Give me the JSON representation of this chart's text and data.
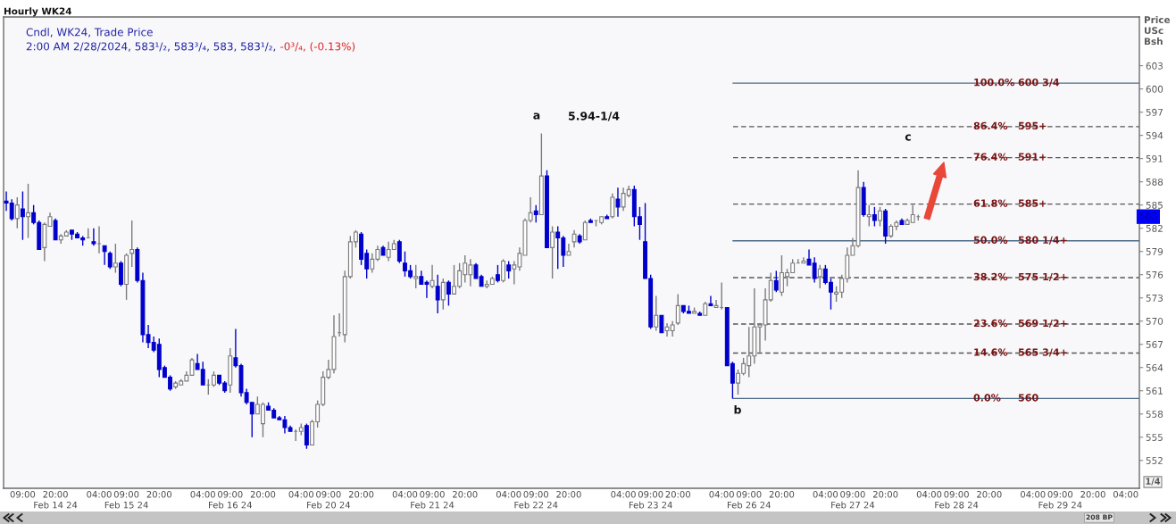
{
  "chart_data": {
    "type": "candlestick",
    "title": "Hourly WK24",
    "subtitle": "Cndl, WK24, Trade Price",
    "ylabel": "Price\nUSc\nBsh",
    "categories": [
      null,
      null,
      null,
      "09:00",
      null,
      null,
      null,
      null,
      null,
      "20:00\nFeb 14 24",
      null,
      null,
      null,
      null,
      null,
      null,
      null,
      "04:00",
      null,
      null,
      null,
      null,
      "09:00\nFeb 15 24",
      null,
      null,
      null,
      null,
      null,
      "20:00",
      null,
      null,
      null,
      null,
      null,
      null,
      null,
      "04:00",
      null,
      null,
      null,
      null,
      "09:00\nFeb 16 24",
      null,
      null,
      null,
      null,
      null,
      "20:00",
      null,
      null,
      null,
      null,
      null,
      null,
      "04:00",
      null,
      null,
      null,
      null,
      "09:00\nFeb 20 24",
      null,
      null,
      null,
      null,
      null,
      "20:00",
      null,
      null,
      null,
      null,
      null,
      null,
      null,
      "04:00",
      null,
      null,
      null,
      null,
      "09:00\nFeb 21 24",
      null,
      null,
      null,
      null,
      null,
      "20:00",
      null,
      null,
      null,
      null,
      null,
      null,
      null,
      "04:00",
      null,
      null,
      null,
      null,
      "09:00\nFeb 22 24",
      null,
      null,
      null,
      null,
      null,
      "20:00",
      null,
      null,
      null,
      null,
      null,
      null,
      null,
      null,
      null,
      "04:00",
      null,
      null,
      null,
      null,
      "09:00\nFeb 23 24",
      null,
      null,
      null,
      null,
      "20:00",
      null,
      null,
      null,
      null,
      null,
      null,
      null,
      "04:00",
      null,
      null,
      null,
      null,
      "09:00\nFeb 26 24",
      null,
      null,
      null,
      null,
      null,
      "20:00",
      null,
      null,
      null,
      null,
      null,
      null,
      null,
      "04:00",
      null,
      null,
      null,
      null,
      "09:00\nFeb 27 24",
      null,
      null,
      null,
      null,
      null,
      "20:00",
      null,
      null,
      null,
      null,
      null,
      null,
      null,
      "04:00",
      null,
      null,
      null,
      null,
      "09:00\nFeb 28 24",
      null,
      null,
      null,
      null,
      null,
      "20:00",
      null,
      null,
      null,
      null,
      null,
      null,
      null,
      "04:00",
      null,
      null,
      null,
      null,
      "09:00\nFeb 29 24",
      null,
      null,
      null,
      null,
      null,
      "20:00",
      null,
      null,
      null,
      null,
      null,
      "04:00",
      null,
      null
    ],
    "ohlc": [
      [
        585.5,
        586.75,
        584.25,
        585.25
      ],
      [
        585.25,
        585.75,
        583.0,
        583.25
      ],
      [
        583.25,
        586.0,
        582.0,
        585.0
      ],
      [
        584.5,
        586.75,
        580.5,
        583.5
      ],
      [
        583.5,
        587.75,
        580.75,
        584.0
      ],
      [
        584.0,
        585.0,
        582.5,
        582.75
      ],
      [
        582.75,
        583.0,
        579.25,
        579.25
      ],
      [
        579.5,
        582.75,
        577.75,
        582.5
      ],
      [
        582.25,
        584.0,
        582.25,
        583.5
      ],
      [
        583.0,
        583.25,
        580.5,
        580.5
      ],
      [
        580.5,
        581.25,
        580.0,
        581.0
      ],
      [
        581.0,
        581.75,
        581.0,
        581.5
      ],
      [
        581.75,
        581.75,
        580.5,
        581.25
      ],
      [
        581.25,
        581.5,
        580.75,
        580.75
      ],
      [
        580.75,
        581.0,
        579.75,
        580.5
      ],
      [
        580.75,
        582.0,
        580.75,
        580.75
      ],
      [
        580.25,
        582.0,
        579.75,
        580.0
      ],
      [
        580.0,
        582.25,
        578.75,
        580.0
      ],
      [
        579.75,
        579.75,
        577.25,
        579.0
      ],
      [
        578.75,
        579.0,
        576.75,
        577.0
      ],
      [
        577.0,
        580.0,
        576.25,
        577.5
      ],
      [
        577.5,
        577.75,
        574.5,
        574.75
      ],
      [
        574.75,
        578.75,
        572.75,
        578.5
      ],
      [
        578.75,
        583.0,
        577.0,
        579.25
      ],
      [
        579.25,
        579.5,
        575.0,
        575.25
      ],
      [
        575.25,
        576.25,
        567.25,
        568.25
      ],
      [
        568.25,
        569.5,
        566.5,
        567.25
      ],
      [
        567.25,
        568.0,
        566.0,
        566.25
      ],
      [
        567.0,
        567.75,
        562.75,
        563.75
      ],
      [
        564.0,
        564.25,
        562.75,
        562.75
      ],
      [
        562.75,
        563.0,
        561.0,
        561.25
      ],
      [
        561.5,
        562.25,
        561.25,
        562.0
      ],
      [
        561.75,
        562.5,
        561.75,
        562.25
      ],
      [
        562.25,
        563.5,
        562.25,
        563.0
      ],
      [
        563.0,
        565.25,
        563.0,
        565.0
      ],
      [
        564.5,
        565.75,
        563.75,
        563.75
      ],
      [
        563.75,
        564.75,
        561.75,
        561.75
      ],
      [
        561.75,
        562.5,
        560.5,
        561.75
      ],
      [
        561.75,
        563.5,
        561.5,
        563.0
      ],
      [
        563.0,
        563.0,
        561.75,
        562.0
      ],
      [
        562.0,
        562.25,
        560.75,
        561.0
      ],
      [
        561.75,
        566.5,
        560.75,
        565.5
      ],
      [
        565.25,
        569.0,
        564.0,
        564.25
      ],
      [
        564.25,
        564.5,
        560.25,
        560.75
      ],
      [
        560.75,
        561.25,
        559.25,
        559.5
      ],
      [
        559.5,
        559.5,
        555.0,
        558.0
      ],
      [
        558.0,
        560.25,
        558.0,
        559.25
      ],
      [
        556.75,
        559.5,
        555.0,
        559.25
      ],
      [
        559.0,
        559.5,
        558.5,
        558.5
      ],
      [
        558.5,
        558.75,
        557.5,
        557.5
      ],
      [
        557.5,
        557.75,
        557.25,
        557.25
      ],
      [
        557.25,
        557.75,
        555.5,
        556.25
      ],
      [
        556.25,
        556.5,
        555.75,
        555.75
      ],
      [
        555.75,
        556.0,
        554.5,
        555.75
      ],
      [
        555.75,
        556.75,
        555.25,
        556.25
      ],
      [
        556.5,
        556.75,
        553.5,
        554.0
      ],
      [
        554.0,
        557.25,
        554.0,
        557.0
      ],
      [
        557.0,
        559.75,
        556.25,
        559.25
      ],
      [
        559.25,
        563.5,
        559.0,
        562.75
      ],
      [
        562.75,
        565.0,
        562.5,
        563.75
      ],
      [
        563.75,
        570.75,
        563.25,
        568.0
      ],
      [
        568.5,
        571.0,
        568.0,
        568.5
      ],
      [
        568.25,
        576.5,
        567.25,
        575.75
      ],
      [
        575.75,
        581.0,
        575.5,
        580.25
      ],
      [
        580.25,
        581.75,
        579.5,
        581.5
      ],
      [
        581.25,
        581.5,
        577.25,
        578.0
      ],
      [
        578.75,
        579.25,
        575.5,
        576.75
      ],
      [
        576.75,
        578.75,
        576.25,
        578.0
      ],
      [
        578.0,
        579.75,
        577.75,
        579.25
      ],
      [
        579.5,
        579.75,
        578.5,
        578.5
      ],
      [
        578.25,
        580.25,
        577.75,
        579.25
      ],
      [
        579.25,
        580.5,
        579.25,
        580.0
      ],
      [
        580.25,
        580.5,
        577.5,
        577.75
      ],
      [
        577.5,
        579.0,
        575.75,
        576.5
      ],
      [
        576.5,
        577.25,
        575.5,
        575.75
      ],
      [
        575.5,
        577.25,
        574.25,
        575.75
      ],
      [
        575.75,
        576.5,
        574.75,
        574.75
      ],
      [
        575.0,
        575.25,
        573.0,
        574.75
      ],
      [
        574.5,
        577.25,
        574.25,
        575.25
      ],
      [
        574.5,
        576.0,
        571.0,
        572.75
      ],
      [
        572.75,
        575.5,
        571.5,
        575.0
      ],
      [
        575.0,
        575.25,
        572.0,
        573.5
      ],
      [
        573.5,
        577.25,
        573.5,
        574.5
      ],
      [
        574.5,
        577.5,
        574.25,
        576.5
      ],
      [
        576.0,
        578.5,
        575.0,
        577.5
      ],
      [
        576.0,
        578.0,
        574.5,
        577.25
      ],
      [
        577.25,
        577.5,
        575.5,
        575.5
      ],
      [
        575.75,
        576.0,
        574.5,
        574.5
      ],
      [
        574.5,
        575.25,
        574.25,
        574.75
      ],
      [
        574.75,
        575.75,
        574.75,
        575.5
      ],
      [
        576.0,
        577.25,
        575.0,
        575.25
      ],
      [
        575.25,
        578.0,
        575.0,
        577.75
      ],
      [
        577.25,
        577.75,
        575.5,
        576.5
      ],
      [
        576.75,
        577.75,
        574.75,
        577.25
      ],
      [
        577.0,
        579.5,
        576.5,
        578.75
      ],
      [
        578.5,
        583.25,
        578.5,
        583.0
      ],
      [
        583.0,
        586.0,
        582.75,
        584.0
      ],
      [
        584.25,
        585.0,
        582.75,
        583.75
      ],
      [
        583.75,
        594.25,
        583.75,
        588.75
      ],
      [
        588.75,
        589.5,
        579.5,
        579.5
      ],
      [
        579.5,
        582.25,
        575.5,
        581.5
      ],
      [
        581.5,
        582.25,
        576.75,
        580.75
      ],
      [
        580.75,
        581.0,
        577.0,
        578.5
      ],
      [
        578.5,
        580.0,
        578.5,
        579.0
      ],
      [
        580.25,
        581.75,
        579.5,
        581.25
      ],
      [
        581.0,
        581.25,
        580.0,
        580.25
      ],
      [
        580.5,
        583.0,
        580.5,
        582.75
      ],
      [
        583.0,
        583.25,
        582.75,
        582.75
      ],
      [
        583.0,
        583.0,
        582.25,
        583.0
      ],
      [
        582.75,
        583.5,
        582.5,
        583.5
      ],
      [
        583.5,
        583.75,
        583.25,
        583.25
      ],
      [
        583.5,
        586.5,
        583.25,
        586.0
      ],
      [
        585.75,
        587.25,
        583.5,
        584.75
      ],
      [
        584.75,
        587.25,
        584.25,
        586.5
      ],
      [
        586.25,
        587.5,
        586.0,
        587.0
      ],
      [
        587.0,
        587.5,
        582.25,
        583.5
      ],
      [
        583.5,
        584.75,
        580.5,
        582.5
      ],
      [
        580.25,
        585.25,
        575.5,
        575.5
      ],
      [
        575.5,
        576.0,
        569.0,
        569.25
      ],
      [
        569.25,
        573.25,
        568.75,
        570.75
      ],
      [
        570.75,
        570.75,
        568.5,
        568.5
      ],
      [
        568.75,
        569.75,
        568.0,
        569.25
      ],
      [
        568.75,
        570.0,
        568.0,
        569.5
      ],
      [
        569.75,
        573.5,
        569.5,
        572.0
      ],
      [
        572.0,
        572.0,
        571.0,
        571.25
      ],
      [
        571.25,
        572.0,
        571.0,
        571.0
      ],
      [
        571.0,
        571.75,
        571.0,
        571.25
      ],
      [
        571.0,
        571.25,
        570.75,
        570.75
      ],
      [
        570.75,
        572.5,
        570.75,
        572.25
      ],
      [
        572.25,
        573.25,
        572.0,
        572.0
      ],
      [
        571.75,
        572.75,
        571.75,
        572.0
      ],
      [
        571.75,
        575.0,
        571.5,
        571.75
      ],
      [
        571.75,
        571.75,
        564.25,
        564.25
      ],
      [
        564.5,
        564.75,
        560.0,
        562.0
      ],
      [
        562.0,
        563.75,
        560.5,
        563.25
      ],
      [
        563.25,
        565.25,
        563.0,
        564.5
      ],
      [
        564.25,
        569.25,
        562.75,
        565.5
      ],
      [
        565.5,
        574.25,
        564.5,
        569.25
      ],
      [
        569.25,
        569.75,
        566.0,
        569.5
      ],
      [
        569.5,
        574.25,
        567.5,
        572.75
      ],
      [
        572.75,
        576.25,
        572.5,
        575.25
      ],
      [
        575.25,
        576.5,
        573.75,
        574.0
      ],
      [
        573.75,
        578.5,
        573.25,
        576.25
      ],
      [
        575.75,
        576.75,
        574.5,
        576.25
      ],
      [
        576.25,
        578.0,
        576.25,
        577.5
      ],
      [
        577.5,
        578.0,
        577.5,
        577.5
      ],
      [
        577.5,
        578.25,
        577.5,
        577.75
      ],
      [
        578.0,
        579.25,
        577.25,
        577.25
      ],
      [
        577.5,
        578.25,
        575.0,
        575.5
      ],
      [
        575.75,
        577.25,
        574.25,
        576.75
      ],
      [
        576.75,
        577.25,
        574.75,
        575.0
      ],
      [
        575.0,
        575.5,
        571.5,
        573.75
      ],
      [
        573.5,
        574.5,
        572.5,
        573.75
      ],
      [
        573.75,
        576.0,
        573.0,
        575.5
      ],
      [
        575.5,
        579.5,
        575.0,
        578.5
      ],
      [
        578.5,
        580.75,
        578.5,
        579.75
      ],
      [
        579.75,
        589.5,
        579.5,
        587.25
      ],
      [
        587.25,
        588.0,
        583.5,
        583.75
      ],
      [
        583.5,
        585.0,
        582.25,
        583.75
      ],
      [
        583.75,
        584.75,
        582.25,
        583.0
      ],
      [
        583.0,
        584.75,
        582.25,
        584.25
      ],
      [
        584.25,
        584.5,
        580.0,
        581.0
      ],
      [
        581.0,
        582.5,
        580.75,
        582.25
      ],
      [
        582.25,
        583.0,
        581.75,
        582.75
      ],
      [
        583.0,
        583.25,
        582.5,
        582.5
      ],
      [
        582.5,
        583.25,
        582.5,
        583.0
      ],
      [
        582.75,
        585.0,
        582.75,
        583.75
      ],
      [
        583.5,
        583.75,
        583.0,
        583.5
      ],
      null,
      null,
      null,
      null,
      null,
      null,
      null,
      null,
      null,
      null,
      null,
      null,
      null,
      null,
      null,
      null,
      null,
      null,
      null,
      null,
      null,
      null,
      null,
      null,
      null,
      null,
      null,
      null,
      null,
      null,
      null,
      null,
      null,
      null,
      null,
      null,
      null,
      null,
      null,
      null
    ],
    "colors": [
      "#0000cc",
      "#0000cc",
      "#ffffff",
      "#0000cc",
      "#ffffff",
      "#0000cc",
      "#0000cc",
      "#ffffff",
      "#ffffff",
      "#0000cc",
      "#ffffff",
      "#ffffff",
      "#0000cc",
      "#0000cc",
      "#0000cc",
      "#7a7a7a",
      "#0000cc",
      "#7a7a7a",
      "#0000cc",
      "#0000cc",
      "#ffffff",
      "#0000cc",
      "#ffffff",
      "#ffffff",
      "#0000cc",
      "#0000cc",
      "#0000cc",
      "#0000cc",
      "#0000cc",
      "#0000cc",
      "#0000cc",
      "#ffffff",
      "#ffffff",
      "#ffffff",
      "#ffffff",
      "#0000cc",
      "#0000cc",
      "#7a7a7a",
      "#ffffff",
      "#0000cc",
      "#0000cc",
      "#ffffff",
      "#0000cc",
      "#0000cc",
      "#0000cc",
      "#0000cc",
      "#ffffff",
      "#ffffff",
      "#0000cc",
      "#0000cc",
      "#0000cc",
      "#0000cc",
      "#0000cc",
      "#7a7a7a",
      "#ffffff",
      "#0000cc",
      "#ffffff",
      "#ffffff",
      "#ffffff",
      "#ffffff",
      "#ffffff",
      "#7a7a7a",
      "#ffffff",
      "#ffffff",
      "#ffffff",
      "#0000cc",
      "#0000cc",
      "#ffffff",
      "#ffffff",
      "#0000cc",
      "#ffffff",
      "#ffffff",
      "#0000cc",
      "#0000cc",
      "#0000cc",
      "#ffffff",
      "#0000cc",
      "#0000cc",
      "#ffffff",
      "#0000cc",
      "#ffffff",
      "#0000cc",
      "#ffffff",
      "#ffffff",
      "#ffffff",
      "#ffffff",
      "#0000cc",
      "#0000cc",
      "#ffffff",
      "#ffffff",
      "#0000cc",
      "#ffffff",
      "#0000cc",
      "#ffffff",
      "#ffffff",
      "#ffffff",
      "#ffffff",
      "#0000cc",
      "#ffffff",
      "#0000cc",
      "#ffffff",
      "#0000cc",
      "#0000cc",
      "#ffffff",
      "#ffffff",
      "#0000cc",
      "#ffffff",
      "#0000cc",
      "#7a7a7a",
      "#ffffff",
      "#0000cc",
      "#ffffff",
      "#0000cc",
      "#ffffff",
      "#ffffff",
      "#0000cc",
      "#0000cc",
      "#0000cc",
      "#0000cc",
      "#ffffff",
      "#0000cc",
      "#ffffff",
      "#ffffff",
      "#ffffff",
      "#0000cc",
      "#0000cc",
      "#ffffff",
      "#0000cc",
      "#ffffff",
      "#0000cc",
      "#ffffff",
      "#7a7a7a",
      "#0000cc",
      "#0000cc",
      "#ffffff",
      "#ffffff",
      "#ffffff",
      "#ffffff",
      "#ffffff",
      "#ffffff",
      "#ffffff",
      "#0000cc",
      "#ffffff",
      "#ffffff",
      "#ffffff",
      "#7a7a7a",
      "#ffffff",
      "#0000cc",
      "#0000cc",
      "#ffffff",
      "#0000cc",
      "#0000cc",
      "#ffffff",
      "#ffffff",
      "#ffffff",
      "#ffffff",
      "#ffffff",
      "#0000cc",
      "#ffffff",
      "#0000cc",
      "#ffffff",
      "#0000cc",
      "#ffffff",
      "#ffffff",
      "#0000cc",
      "#ffffff",
      "#ffffff",
      "#7a7a7a",
      null,
      null,
      null,
      null,
      null,
      null,
      null,
      null,
      null,
      null,
      null,
      null,
      null,
      null,
      null,
      null,
      null,
      null,
      null,
      null,
      null,
      null,
      null,
      null,
      null,
      null,
      null,
      null,
      null,
      null,
      null,
      null,
      null,
      null,
      null,
      null,
      null,
      null,
      null,
      null
    ],
    "ylim": [
      548.4,
      609.3
    ],
    "yticks": [
      552,
      555,
      558,
      561,
      564,
      567,
      570,
      573,
      576,
      579,
      582,
      585,
      588,
      591,
      594,
      597,
      600,
      603
    ],
    "ref_lines": [
      {
        "axis": "y",
        "value": 600.75,
        "color": "#4d6a88",
        "line_style": "solid"
      },
      {
        "axis": "y",
        "value": 595.125,
        "color": "#555555",
        "line_style": "dashed"
      },
      {
        "axis": "y",
        "value": 591.125,
        "color": "#555555",
        "line_style": "dashed"
      },
      {
        "axis": "y",
        "value": 585.125,
        "color": "#555555",
        "line_style": "dashed"
      },
      {
        "axis": "y",
        "value": 580.375,
        "color": "#4d6a88",
        "line_style": "solid"
      },
      {
        "axis": "y",
        "value": 575.625,
        "color": "#555555",
        "line_style": "dashed"
      },
      {
        "axis": "y",
        "value": 569.625,
        "color": "#555555",
        "line_style": "dashed"
      },
      {
        "axis": "y",
        "value": 565.875,
        "color": "#555555",
        "line_style": "dashed"
      },
      {
        "axis": "y",
        "value": 560,
        "color": "#4d6a88",
        "line_style": "solid"
      }
    ],
    "annotations": [
      "2:00 AM 2/28/2024, 583¹/₂, 583³/₄, 583, 583¹/₂,",
      "-0³/₄, (-0.13%)",
      "1/4",
      "208 BP",
      "a",
      "5.94-1/4",
      "b",
      "c",
      {
        "text": "100.0%",
        "y": 600.75
      },
      {
        "text": "600 3/4",
        "y": 600.75
      },
      {
        "text": "86.4%",
        "y": 595.125
      },
      {
        "text": "595+",
        "y": 595.125
      },
      {
        "text": "76.4%",
        "y": 591.125
      },
      {
        "text": "591+",
        "y": 591.125
      },
      {
        "text": "61.8%",
        "y": 585.125
      },
      {
        "text": "585+",
        "y": 585.125
      },
      {
        "text": "50.0%",
        "y": 580.375
      },
      {
        "text": "580 1/4+",
        "y": 580.375
      },
      {
        "text": "38.2%",
        "y": 575.625
      },
      {
        "text": "575 1/2+",
        "y": 575.625
      },
      {
        "text": "23.6%",
        "y": 569.625
      },
      {
        "text": "569 1/2+",
        "y": 569.625
      },
      {
        "text": "14.6%",
        "y": 565.875
      },
      {
        "text": "565 3/4+",
        "y": 565.875
      },
      {
        "text": "0.0%",
        "y": 560
      },
      {
        "text": "560",
        "y": 560
      },
      {
        "text": "583",
        "y": 583.5
      }
    ]
  }
}
